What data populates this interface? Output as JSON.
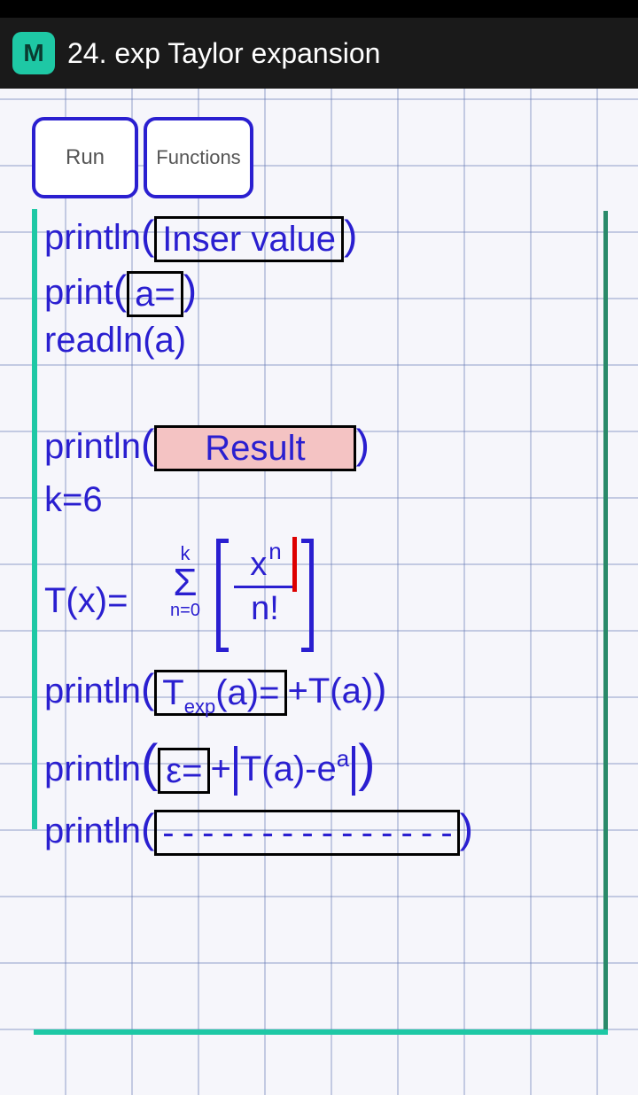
{
  "app": {
    "icon_letter": "M",
    "title": "24. exp Taylor expansion",
    "icon_bg": "#1ec8a5"
  },
  "buttons": {
    "run": "Run",
    "functions": "Functions"
  },
  "code": {
    "line1_fn": "println",
    "line1_str": "Inser value",
    "line2_fn": "print",
    "line2_str": "a= ",
    "line3": "readln(a)",
    "line4_fn": "println",
    "line4_str": "Result",
    "line5": "k=6",
    "tx_lhs": "T(x)=",
    "sigma_top": "k",
    "sigma_symbol": "Σ",
    "sigma_bot": "n=0",
    "frac_top_base": "x",
    "frac_top_exp": "n",
    "frac_bot": "n!",
    "line6_fn": "println",
    "line6_box_pre": "T",
    "line6_box_sub": "exp",
    "line6_box_post": "(a)=",
    "line6_tail": "+T(a)",
    "line7_fn": "println",
    "line7_box": "ε=",
    "line7_mid": "+",
    "line7_abs": "T(a)-e",
    "line7_exp": "a",
    "line8_fn": "println",
    "line8_str": "- - - - - - - - - - - - - - -"
  },
  "colors": {
    "formula": "#2a1fd0",
    "button_border": "#2a1fd0",
    "highlight_bg": "#f4c3c3",
    "teal": "#1ec8a5",
    "cursor": "#d00000"
  }
}
